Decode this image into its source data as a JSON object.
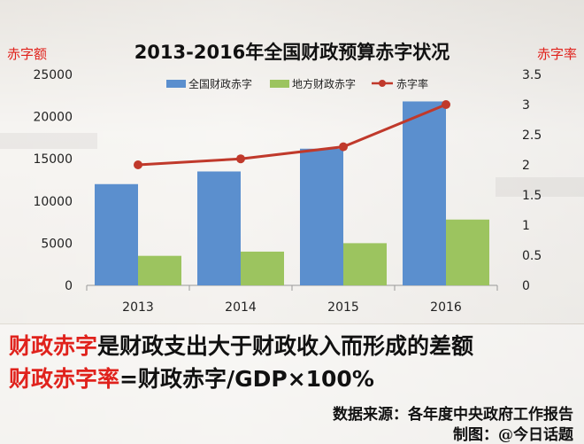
{
  "chart_data": {
    "type": "bar",
    "title": "2013-2016年全国财政预算赤字状况",
    "y_left_label": "赤字额",
    "y_right_label": "赤字率",
    "categories": [
      "2013",
      "2014",
      "2015",
      "2016"
    ],
    "series": [
      {
        "name": "全国财政赤字",
        "type": "bar",
        "axis": "left",
        "values": [
          12000,
          13500,
          16200,
          21800
        ]
      },
      {
        "name": "地方财政赤字",
        "type": "bar",
        "axis": "left",
        "values": [
          3500,
          4000,
          5000,
          7800
        ]
      },
      {
        "name": "赤字率",
        "type": "line",
        "axis": "right",
        "values": [
          2.0,
          2.1,
          2.3,
          3.0
        ]
      }
    ],
    "ylim_left": [
      0,
      25000
    ],
    "yticks_left": [
      "0",
      "5000",
      "10000",
      "15000",
      "20000",
      "25000"
    ],
    "ylim_right": [
      0,
      3.5
    ],
    "yticks_right": [
      "0",
      "0.5",
      "1",
      "1.5",
      "2",
      "2.5",
      "3",
      "3.5"
    ],
    "legend_position": "top",
    "grid": false,
    "colors": {
      "national": "#5b8fce",
      "local": "#9cc45f",
      "rate": "#c0392b",
      "title": "#111111",
      "axis_title": "#e0221c"
    }
  },
  "notes": {
    "def1_term": "财政赤字",
    "def1_rest": "是财政支出大于财政收入而形成的差额",
    "def2_term": "财政赤字率",
    "def2_rest": "=财政赤字/GDP×100%"
  },
  "source": {
    "data_source": "数据来源：各年度中央政府工作报告",
    "made_by": "制图：@今日话题"
  }
}
